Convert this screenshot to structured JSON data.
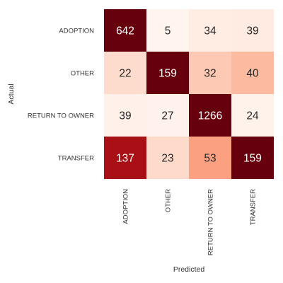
{
  "chart_data": {
    "type": "heatmap",
    "title": "",
    "xlabel": "Predicted",
    "ylabel": "Actual",
    "x_categories": [
      "ADOPTION",
      "OTHER",
      "RETURN TO OWNER",
      "TRANSFER"
    ],
    "y_categories": [
      "ADOPTION",
      "OTHER",
      "RETURN TO OWNER",
      "TRANSFER"
    ],
    "values": [
      [
        642,
        5,
        34,
        39
      ],
      [
        22,
        159,
        32,
        40
      ],
      [
        39,
        27,
        1266,
        24
      ],
      [
        137,
        23,
        53,
        159
      ]
    ],
    "colormap": "Reds",
    "grid": false,
    "colorbar": false,
    "annotations": true
  },
  "colors": {
    "cmap_low": "#fff5f0",
    "cmap_high": "#67000d",
    "text_dark": "#262626",
    "text_light": "#ffffff"
  }
}
